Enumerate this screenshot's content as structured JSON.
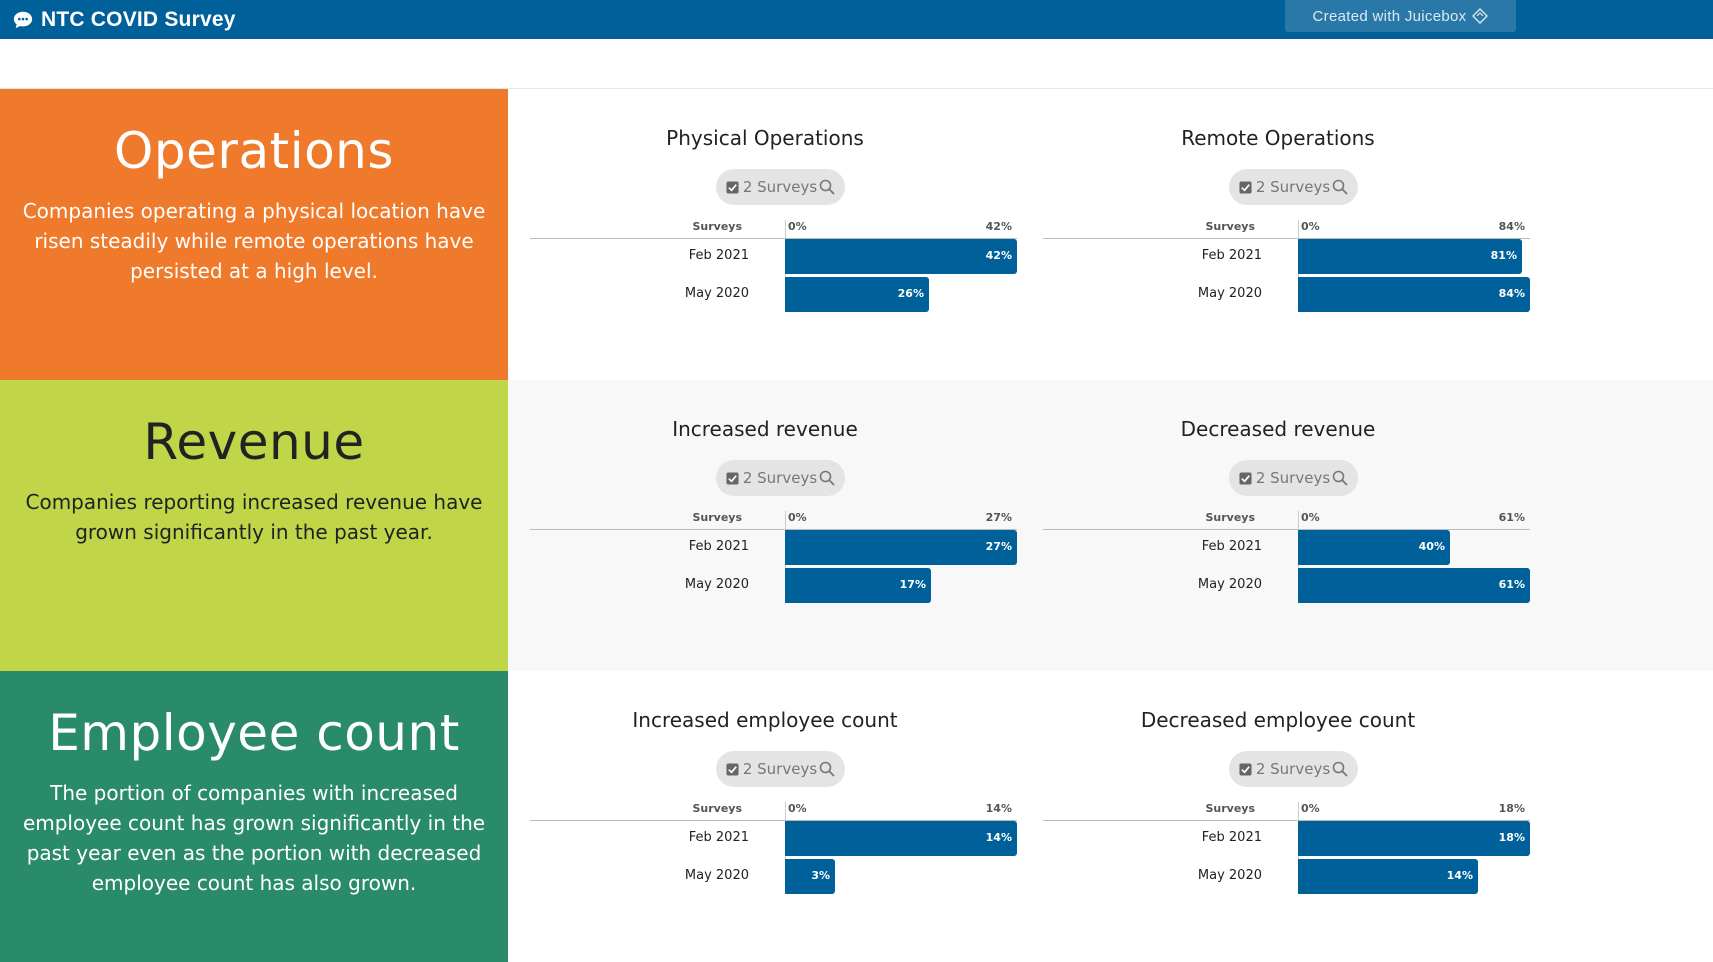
{
  "header": {
    "app_title": "NTC COVID Survey",
    "juicebox_label": "Created with Juicebox",
    "bg_color": "#00609a"
  },
  "sections": [
    {
      "title": "Operations",
      "description": "Companies operating a physical location have risen steadily while remote operations have persisted at a high level.",
      "panel_color": "#f07a2b",
      "text_color": "#ffffff",
      "area_bg": "#ffffff",
      "charts": [
        {
          "title": "Physical Operations",
          "filter_label": "2 Surveys",
          "surveys_header": "Surveys",
          "axis_min_label": "0%",
          "axis_max_label": "42%",
          "rows": [
            {
              "label": "Feb 2021",
              "value": 42,
              "value_label": "42%"
            },
            {
              "label": "May 2020",
              "value": 26,
              "value_label": "26%"
            }
          ]
        },
        {
          "title": "Remote Operations",
          "filter_label": "2 Surveys",
          "surveys_header": "Surveys",
          "axis_min_label": "0%",
          "axis_max_label": "84%",
          "rows": [
            {
              "label": "Feb 2021",
              "value": 81,
              "value_label": "81%"
            },
            {
              "label": "May 2020",
              "value": 84,
              "value_label": "84%"
            }
          ]
        }
      ]
    },
    {
      "title": "Revenue",
      "description": "Companies reporting increased revenue have grown significantly in the past year.",
      "panel_color": "#c0d548",
      "text_color": "#222222",
      "area_bg": "#f8f8f8",
      "charts": [
        {
          "title": "Increased revenue",
          "filter_label": "2 Surveys",
          "surveys_header": "Surveys",
          "axis_min_label": "0%",
          "axis_max_label": "27%",
          "rows": [
            {
              "label": "Feb 2021",
              "value": 27,
              "value_label": "27%"
            },
            {
              "label": "May 2020",
              "value": 17,
              "value_label": "17%"
            }
          ]
        },
        {
          "title": "Decreased revenue",
          "filter_label": "2 Surveys",
          "surveys_header": "Surveys",
          "axis_min_label": "0%",
          "axis_max_label": "61%",
          "rows": [
            {
              "label": "Feb 2021",
              "value": 40,
              "value_label": "40%"
            },
            {
              "label": "May 2020",
              "value": 61,
              "value_label": "61%"
            }
          ]
        }
      ]
    },
    {
      "title": "Employee count",
      "description": "The portion of companies with increased employee count has grown significantly in the past year even as the portion with decreased employee count has also grown.",
      "panel_color": "#2a8b6a",
      "text_color": "#ffffff",
      "area_bg": "#ffffff",
      "charts": [
        {
          "title": "Increased employee count",
          "filter_label": "2 Surveys",
          "surveys_header": "Surveys",
          "axis_min_label": "0%",
          "axis_max_label": "14%",
          "rows": [
            {
              "label": "Feb 2021",
              "value": 14,
              "value_label": "14%"
            },
            {
              "label": "May 2020",
              "value": 3,
              "value_label": "3%"
            }
          ]
        },
        {
          "title": "Decreased employee count",
          "filter_label": "2 Surveys",
          "surveys_header": "Surveys",
          "axis_min_label": "0%",
          "axis_max_label": "18%",
          "rows": [
            {
              "label": "Feb 2021",
              "value": 18,
              "value_label": "18%"
            },
            {
              "label": "May 2020",
              "value": 14,
              "value_label": "14%"
            }
          ]
        }
      ]
    }
  ]
}
